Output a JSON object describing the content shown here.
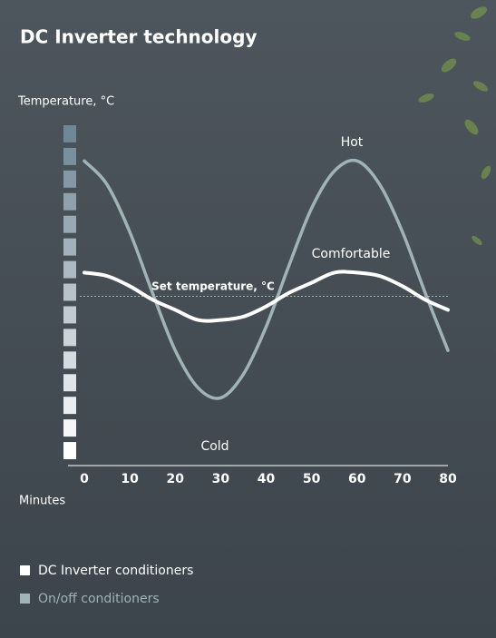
{
  "chart_data": {
    "type": "line",
    "title": "DC Inverter technology",
    "y_label": "Temperature, °C",
    "x_label": "Minutes",
    "x": [
      0,
      5,
      10,
      15,
      20,
      25,
      30,
      35,
      40,
      45,
      50,
      55,
      60,
      65,
      70,
      75,
      80
    ],
    "xlim": [
      0,
      80
    ],
    "xticks": [
      0,
      10,
      20,
      30,
      40,
      50,
      60,
      70,
      80
    ],
    "ylim": [
      0,
      100
    ],
    "set_temperature": 50,
    "set_temperature_label": "Set temperature, °C",
    "annotations": [
      "Hot",
      "Comfortable",
      "Cold"
    ],
    "series": [
      {
        "name": "DC Inverter conditioners",
        "color": "#ffffff",
        "values": [
          57,
          56,
          53,
          49,
          46,
          43,
          43,
          44,
          47,
          51,
          54,
          57,
          57,
          56,
          53,
          49,
          46
        ]
      },
      {
        "name": "On/off conditioners",
        "color": "#9fb3b8",
        "values": [
          90,
          83,
          69,
          51,
          34,
          23,
          20,
          27,
          41,
          59,
          76,
          87,
          90,
          83,
          69,
          51,
          34
        ]
      }
    ]
  }
}
